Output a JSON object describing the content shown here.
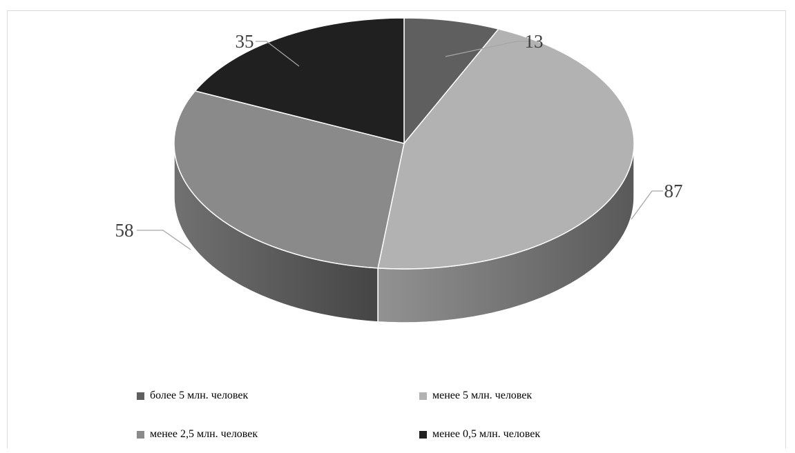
{
  "chart_data": {
    "type": "pie",
    "style": "3d",
    "categories": [
      "более 5 млн. человек",
      "менее 5 млн. человек",
      "менее 2,5 млн. человек",
      "менее 0,5 млн. человек"
    ],
    "values": [
      13,
      87,
      58,
      35
    ],
    "colors": [
      "#5f5f5f",
      "#b2b2b2",
      "#8a8a8a",
      "#202020"
    ],
    "title": "",
    "legend_position": "bottom"
  }
}
